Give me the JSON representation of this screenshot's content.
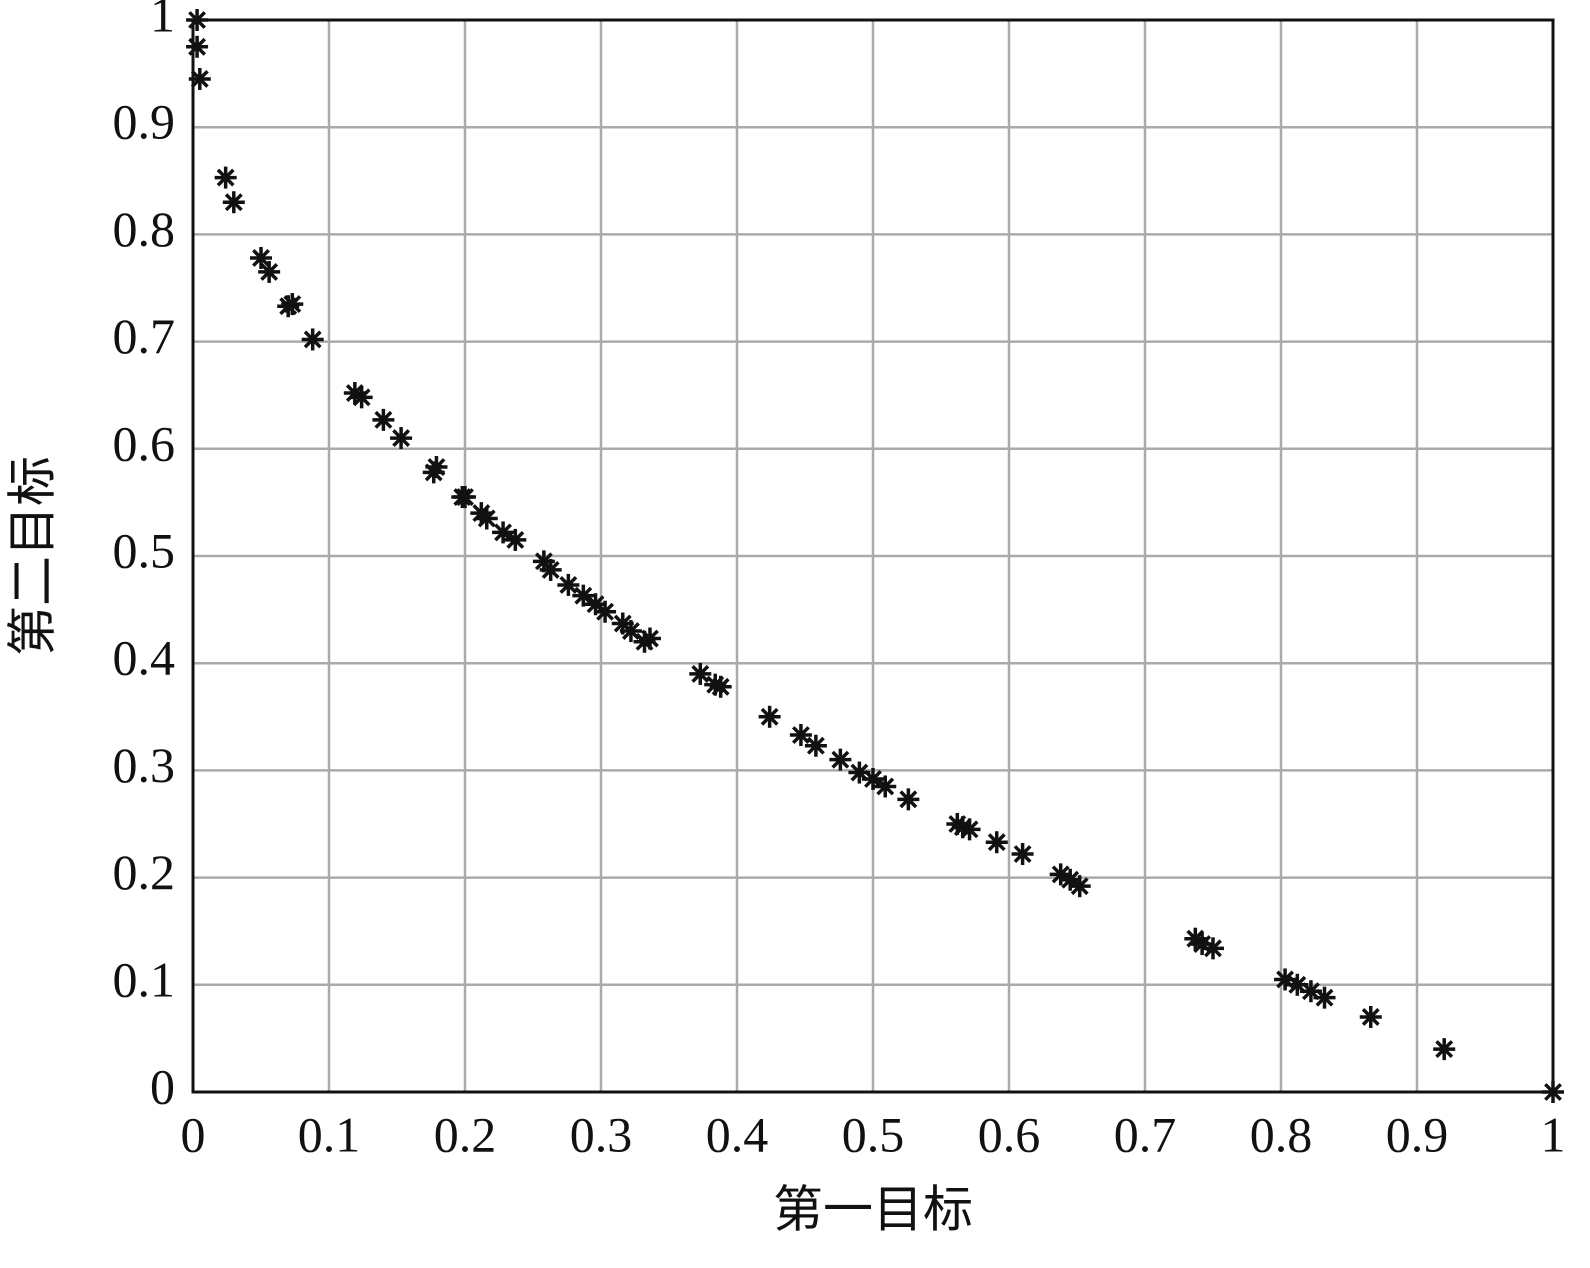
{
  "chart_data": {
    "type": "scatter",
    "xlabel": "第一目标",
    "ylabel": "第二目标",
    "x": [
      0.003,
      0.003,
      0.005,
      0.024,
      0.03,
      0.05,
      0.056,
      0.07,
      0.073,
      0.088,
      0.119,
      0.124,
      0.14,
      0.153,
      0.177,
      0.179,
      0.198,
      0.2,
      0.212,
      0.216,
      0.228,
      0.237,
      0.258,
      0.263,
      0.276,
      0.287,
      0.296,
      0.303,
      0.316,
      0.322,
      0.332,
      0.336,
      0.373,
      0.384,
      0.388,
      0.424,
      0.447,
      0.458,
      0.476,
      0.49,
      0.5,
      0.509,
      0.526,
      0.562,
      0.566,
      0.571,
      0.591,
      0.61,
      0.638,
      0.645,
      0.652,
      0.737,
      0.742,
      0.75,
      0.803,
      0.812,
      0.822,
      0.832,
      0.866,
      0.92,
      1.0
    ],
    "values": [
      1.0,
      0.975,
      0.945,
      0.853,
      0.83,
      0.778,
      0.765,
      0.733,
      0.735,
      0.702,
      0.652,
      0.648,
      0.627,
      0.61,
      0.578,
      0.583,
      0.555,
      0.555,
      0.54,
      0.535,
      0.522,
      0.515,
      0.495,
      0.487,
      0.473,
      0.463,
      0.455,
      0.448,
      0.437,
      0.43,
      0.42,
      0.423,
      0.39,
      0.38,
      0.378,
      0.35,
      0.333,
      0.323,
      0.31,
      0.298,
      0.292,
      0.285,
      0.273,
      0.25,
      0.247,
      0.245,
      0.233,
      0.222,
      0.203,
      0.198,
      0.192,
      0.143,
      0.138,
      0.134,
      0.105,
      0.1,
      0.094,
      0.088,
      0.07,
      0.04,
      0.0
    ],
    "color": "#111111",
    "xlim": [
      0,
      1
    ],
    "ylim": [
      0,
      1
    ],
    "xticks": [
      0,
      0.1,
      0.2,
      0.3,
      0.4,
      0.5,
      0.6,
      0.7,
      0.8,
      0.9,
      1
    ],
    "yticks": [
      0,
      0.1,
      0.2,
      0.3,
      0.4,
      0.5,
      0.6,
      0.7,
      0.8,
      0.9,
      1
    ],
    "grid": true
  }
}
